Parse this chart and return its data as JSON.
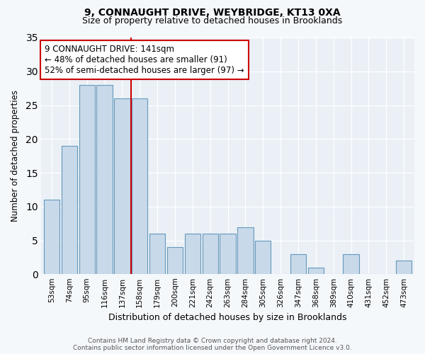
{
  "title": "9, CONNAUGHT DRIVE, WEYBRIDGE, KT13 0XA",
  "subtitle": "Size of property relative to detached houses in Brooklands",
  "xlabel": "Distribution of detached houses by size in Brooklands",
  "ylabel": "Number of detached properties",
  "bar_labels": [
    "53sqm",
    "74sqm",
    "95sqm",
    "116sqm",
    "137sqm",
    "158sqm",
    "179sqm",
    "200sqm",
    "221sqm",
    "242sqm",
    "263sqm",
    "284sqm",
    "305sqm",
    "326sqm",
    "347sqm",
    "368sqm",
    "389sqm",
    "410sqm",
    "431sqm",
    "452sqm",
    "473sqm"
  ],
  "bar_values": [
    11,
    19,
    28,
    28,
    26,
    26,
    6,
    4,
    6,
    6,
    6,
    7,
    5,
    0,
    3,
    1,
    0,
    3,
    0,
    0,
    2
  ],
  "bar_color": "#c8d9ea",
  "bar_edge_color": "#6699bb",
  "annotation_text": "9 CONNAUGHT DRIVE: 141sqm\n← 48% of detached houses are smaller (91)\n52% of semi-detached houses are larger (97) →",
  "vline_x": 4.5,
  "vline_color": "#cc0000",
  "annotation_box_facecolor": "#ffffff",
  "annotation_box_edgecolor": "#cc0000",
  "footer_text": "Contains HM Land Registry data © Crown copyright and database right 2024.\nContains public sector information licensed under the Open Government Licence v3.0.",
  "ylim": [
    0,
    35
  ],
  "yticks": [
    0,
    5,
    10,
    15,
    20,
    25,
    30,
    35
  ],
  "fig_facecolor": "#f5f8fb",
  "ax_facecolor": "#eaf0f6"
}
